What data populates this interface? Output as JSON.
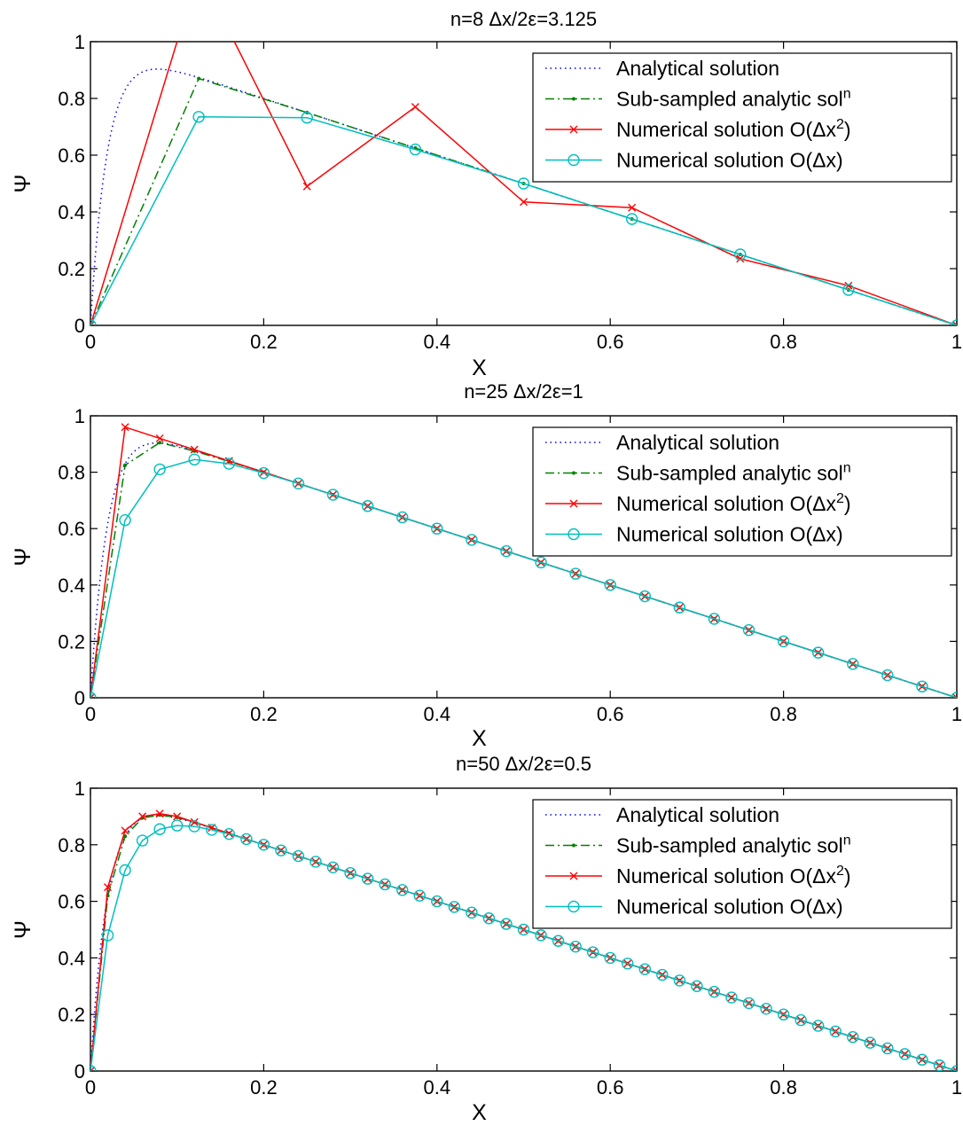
{
  "chart_data": [
    {
      "type": "line",
      "title": "n=8      Δx/2ε=3.125",
      "xlabel": "X",
      "ylabel": "Ψ",
      "xlim": [
        0,
        1
      ],
      "ylim": [
        0,
        1
      ],
      "xticks": [
        "0",
        "0.2",
        "0.4",
        "0.6",
        "0.8",
        "1"
      ],
      "yticks": [
        "0",
        "0.2",
        "0.4",
        "0.6",
        "0.8",
        "1"
      ],
      "legend_position": "top-right",
      "series": [
        {
          "name": "Analytical solution",
          "kind": "analytic",
          "color": "#0000ff",
          "style": "dotted",
          "marker": "none",
          "x": [],
          "y": []
        },
        {
          "name": "Sub-sampled analytic sol",
          "name_sup": "n",
          "kind": "subsampled",
          "color": "#008000",
          "style": "dashdot",
          "marker": "dot",
          "x": [
            0,
            0.125,
            0.25,
            0.375,
            0.5,
            0.625,
            0.75,
            0.875,
            1.0
          ],
          "y": [
            0,
            0.87,
            0.75,
            0.625,
            0.5,
            0.375,
            0.25,
            0.125,
            0
          ]
        },
        {
          "name": "Numerical solution O(Δx",
          "name_sup": "2",
          "name_tail": ")",
          "kind": "numerical2",
          "color": "#ff0000",
          "style": "solid",
          "marker": "cross",
          "x": [
            0,
            0.125,
            0.25,
            0.375,
            0.5,
            0.625,
            0.75,
            0.875,
            1.0
          ],
          "y": [
            0,
            1.25,
            0.49,
            0.77,
            0.435,
            0.415,
            0.235,
            0.14,
            0
          ]
        },
        {
          "name": "Numerical solution O(Δx)",
          "kind": "numerical1",
          "color": "#00bfbf",
          "style": "solid",
          "marker": "circle",
          "x": [
            0,
            0.125,
            0.25,
            0.375,
            0.5,
            0.625,
            0.75,
            0.875,
            1.0
          ],
          "y": [
            0,
            0.735,
            0.732,
            0.62,
            0.5,
            0.375,
            0.25,
            0.125,
            0
          ]
        }
      ]
    },
    {
      "type": "line",
      "title": "n=25      Δx/2ε=1",
      "xlabel": "X",
      "ylabel": "Ψ",
      "xlim": [
        0,
        1
      ],
      "ylim": [
        0,
        1
      ],
      "xticks": [
        "0",
        "0.2",
        "0.4",
        "0.6",
        "0.8",
        "1"
      ],
      "yticks": [
        "0",
        "0.2",
        "0.4",
        "0.6",
        "0.8",
        "1"
      ],
      "legend_position": "top-right",
      "series": [
        {
          "name": "Analytical solution",
          "kind": "analytic",
          "color": "#0000ff",
          "style": "dotted",
          "marker": "none",
          "x": [],
          "y": []
        },
        {
          "name": "Sub-sampled analytic sol",
          "name_sup": "n",
          "kind": "subsampled",
          "color": "#008000",
          "style": "dashdot",
          "marker": "dot",
          "x": [
            0,
            0.04,
            0.08,
            0.12,
            0.16,
            0.2,
            0.24,
            0.28,
            0.32,
            0.36,
            0.4,
            0.44,
            0.48,
            0.52,
            0.56,
            0.6,
            0.64,
            0.68,
            0.72,
            0.76,
            0.8,
            0.84,
            0.88,
            0.92,
            0.96,
            1.0
          ],
          "y": [
            0,
            0.825,
            0.905,
            0.875,
            0.838,
            0.8,
            0.76,
            0.72,
            0.68,
            0.64,
            0.6,
            0.56,
            0.52,
            0.48,
            0.44,
            0.4,
            0.36,
            0.32,
            0.28,
            0.24,
            0.2,
            0.16,
            0.12,
            0.08,
            0.04,
            0
          ]
        },
        {
          "name": "Numerical solution O(Δx",
          "name_sup": "2",
          "name_tail": ")",
          "kind": "numerical2",
          "color": "#ff0000",
          "style": "solid",
          "marker": "cross",
          "x": [
            0,
            0.04,
            0.08,
            0.12,
            0.16,
            0.2,
            0.24,
            0.28,
            0.32,
            0.36,
            0.4,
            0.44,
            0.48,
            0.52,
            0.56,
            0.6,
            0.64,
            0.68,
            0.72,
            0.76,
            0.8,
            0.84,
            0.88,
            0.92,
            0.96,
            1.0
          ],
          "y": [
            0,
            0.96,
            0.92,
            0.88,
            0.84,
            0.8,
            0.76,
            0.72,
            0.68,
            0.64,
            0.6,
            0.56,
            0.52,
            0.48,
            0.44,
            0.4,
            0.36,
            0.32,
            0.28,
            0.24,
            0.2,
            0.16,
            0.12,
            0.08,
            0.04,
            0
          ]
        },
        {
          "name": "Numerical solution O(Δx)",
          "kind": "numerical1",
          "color": "#00bfbf",
          "style": "solid",
          "marker": "circle",
          "x": [
            0,
            0.04,
            0.08,
            0.12,
            0.16,
            0.2,
            0.24,
            0.28,
            0.32,
            0.36,
            0.4,
            0.44,
            0.48,
            0.52,
            0.56,
            0.6,
            0.64,
            0.68,
            0.72,
            0.76,
            0.8,
            0.84,
            0.88,
            0.92,
            0.96,
            1.0
          ],
          "y": [
            0,
            0.63,
            0.81,
            0.845,
            0.83,
            0.797,
            0.76,
            0.72,
            0.68,
            0.64,
            0.6,
            0.56,
            0.52,
            0.48,
            0.44,
            0.4,
            0.36,
            0.32,
            0.28,
            0.24,
            0.2,
            0.16,
            0.12,
            0.08,
            0.04,
            0
          ]
        }
      ]
    },
    {
      "type": "line",
      "title": "n=50      Δx/2ε=0.5",
      "xlabel": "X",
      "ylabel": "Ψ",
      "xlim": [
        0,
        1
      ],
      "ylim": [
        0,
        1
      ],
      "xticks": [
        "0",
        "0.2",
        "0.4",
        "0.6",
        "0.8",
        "1"
      ],
      "yticks": [
        "0",
        "0.2",
        "0.4",
        "0.6",
        "0.8",
        "1"
      ],
      "legend_position": "top-right",
      "series": [
        {
          "name": "Analytical solution",
          "kind": "analytic",
          "color": "#0000ff",
          "style": "dotted",
          "marker": "none",
          "x": [],
          "y": []
        },
        {
          "name": "Sub-sampled analytic sol",
          "name_sup": "n",
          "kind": "subsampled",
          "color": "#008000",
          "style": "dashdot",
          "marker": "dot",
          "x": [
            0,
            0.02,
            0.04,
            0.06,
            0.08,
            0.1,
            0.12,
            0.14,
            0.16,
            0.18,
            0.2,
            0.22,
            0.24,
            0.26,
            0.28,
            0.3,
            0.32,
            0.34,
            0.36,
            0.38,
            0.4,
            0.42,
            0.44,
            0.46,
            0.48,
            0.5,
            0.52,
            0.54,
            0.56,
            0.58,
            0.6,
            0.62,
            0.64,
            0.66,
            0.68,
            0.7,
            0.72,
            0.74,
            0.76,
            0.78,
            0.8,
            0.82,
            0.84,
            0.86,
            0.88,
            0.9,
            0.92,
            0.94,
            0.96,
            0.98,
            1.0
          ],
          "y": [
            0,
            0.62,
            0.83,
            0.895,
            0.905,
            0.897,
            0.88,
            0.86,
            0.84,
            0.82,
            0.8,
            0.78,
            0.76,
            0.74,
            0.72,
            0.7,
            0.68,
            0.66,
            0.64,
            0.62,
            0.6,
            0.58,
            0.56,
            0.54,
            0.52,
            0.5,
            0.48,
            0.46,
            0.44,
            0.42,
            0.4,
            0.38,
            0.36,
            0.34,
            0.32,
            0.3,
            0.28,
            0.26,
            0.24,
            0.22,
            0.2,
            0.18,
            0.16,
            0.14,
            0.12,
            0.1,
            0.08,
            0.06,
            0.04,
            0.02,
            0
          ]
        },
        {
          "name": "Numerical solution O(Δx",
          "name_sup": "2",
          "name_tail": ")",
          "kind": "numerical2",
          "color": "#ff0000",
          "style": "solid",
          "marker": "cross",
          "x": [
            0,
            0.02,
            0.04,
            0.06,
            0.08,
            0.1,
            0.12,
            0.14,
            0.16,
            0.18,
            0.2,
            0.22,
            0.24,
            0.26,
            0.28,
            0.3,
            0.32,
            0.34,
            0.36,
            0.38,
            0.4,
            0.42,
            0.44,
            0.46,
            0.48,
            0.5,
            0.52,
            0.54,
            0.56,
            0.58,
            0.6,
            0.62,
            0.64,
            0.66,
            0.68,
            0.7,
            0.72,
            0.74,
            0.76,
            0.78,
            0.8,
            0.82,
            0.84,
            0.86,
            0.88,
            0.9,
            0.92,
            0.94,
            0.96,
            0.98,
            1.0
          ],
          "y": [
            0,
            0.65,
            0.85,
            0.9,
            0.91,
            0.9,
            0.88,
            0.86,
            0.84,
            0.82,
            0.8,
            0.78,
            0.76,
            0.74,
            0.72,
            0.7,
            0.68,
            0.66,
            0.64,
            0.62,
            0.6,
            0.58,
            0.56,
            0.54,
            0.52,
            0.5,
            0.48,
            0.46,
            0.44,
            0.42,
            0.4,
            0.38,
            0.36,
            0.34,
            0.32,
            0.3,
            0.28,
            0.26,
            0.24,
            0.22,
            0.2,
            0.18,
            0.16,
            0.14,
            0.12,
            0.1,
            0.08,
            0.06,
            0.04,
            0.02,
            0
          ]
        },
        {
          "name": "Numerical solution O(Δx)",
          "kind": "numerical1",
          "color": "#00bfbf",
          "style": "solid",
          "marker": "circle",
          "x": [
            0,
            0.02,
            0.04,
            0.06,
            0.08,
            0.1,
            0.12,
            0.14,
            0.16,
            0.18,
            0.2,
            0.22,
            0.24,
            0.26,
            0.28,
            0.3,
            0.32,
            0.34,
            0.36,
            0.38,
            0.4,
            0.42,
            0.44,
            0.46,
            0.48,
            0.5,
            0.52,
            0.54,
            0.56,
            0.58,
            0.6,
            0.62,
            0.64,
            0.66,
            0.68,
            0.7,
            0.72,
            0.74,
            0.76,
            0.78,
            0.8,
            0.82,
            0.84,
            0.86,
            0.88,
            0.9,
            0.92,
            0.94,
            0.96,
            0.98,
            1.0
          ],
          "y": [
            0,
            0.48,
            0.71,
            0.815,
            0.855,
            0.868,
            0.865,
            0.853,
            0.838,
            0.82,
            0.8,
            0.78,
            0.76,
            0.74,
            0.72,
            0.7,
            0.68,
            0.66,
            0.64,
            0.62,
            0.6,
            0.58,
            0.56,
            0.54,
            0.52,
            0.5,
            0.48,
            0.46,
            0.44,
            0.42,
            0.4,
            0.38,
            0.36,
            0.34,
            0.32,
            0.3,
            0.28,
            0.26,
            0.24,
            0.22,
            0.2,
            0.18,
            0.16,
            0.14,
            0.12,
            0.1,
            0.08,
            0.06,
            0.04,
            0.02,
            0
          ]
        }
      ]
    }
  ]
}
